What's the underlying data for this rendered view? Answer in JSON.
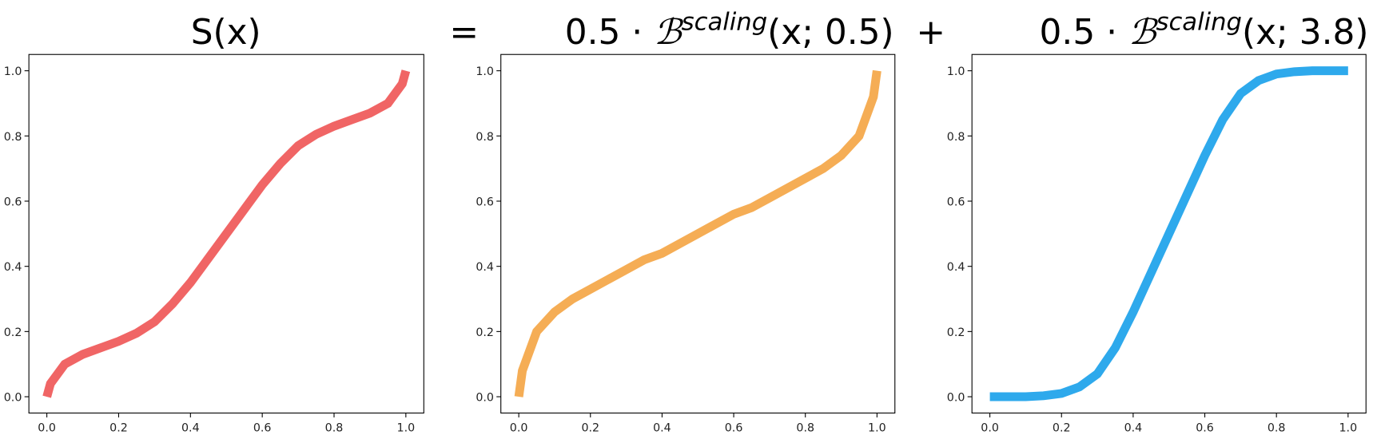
{
  "chart_data": [
    {
      "type": "line",
      "title": "S(x)",
      "color": "#f06565",
      "x": [
        0,
        0.01,
        0.05,
        0.1,
        0.15,
        0.2,
        0.25,
        0.3,
        0.35,
        0.4,
        0.45,
        0.5,
        0.55,
        0.6,
        0.65,
        0.7,
        0.75,
        0.8,
        0.85,
        0.9,
        0.95,
        0.99,
        1
      ],
      "values": [
        0,
        0.04,
        0.1,
        0.13,
        0.15,
        0.17,
        0.195,
        0.23,
        0.285,
        0.35,
        0.425,
        0.5,
        0.575,
        0.65,
        0.715,
        0.77,
        0.805,
        0.83,
        0.85,
        0.87,
        0.9,
        0.96,
        1
      ],
      "xlim": [
        -0.05,
        1.05
      ],
      "ylim": [
        -0.05,
        1.05
      ],
      "xticks": [
        {
          "value": 0,
          "label": "0.0"
        },
        {
          "value": 0.2,
          "label": "0.2"
        },
        {
          "value": 0.4,
          "label": "0.4"
        },
        {
          "value": 0.6,
          "label": "0.6"
        },
        {
          "value": 0.8,
          "label": "0.8"
        },
        {
          "value": 1,
          "label": "1.0"
        }
      ],
      "yticks": [
        {
          "value": 0,
          "label": "0.0"
        },
        {
          "value": 0.2,
          "label": "0.2"
        },
        {
          "value": 0.4,
          "label": "0.4"
        },
        {
          "value": 0.6,
          "label": "0.6"
        },
        {
          "value": 0.8,
          "label": "0.8"
        },
        {
          "value": 1,
          "label": "1.0"
        }
      ]
    },
    {
      "type": "line",
      "title": {
        "coefficient": "0.5 ·",
        "symbol": "ℬ",
        "superscript": "scaling",
        "argument": "(x; 0.5)"
      },
      "color": "#f5ad55",
      "x": [
        0,
        0.01,
        0.05,
        0.1,
        0.15,
        0.2,
        0.25,
        0.3,
        0.35,
        0.4,
        0.45,
        0.5,
        0.55,
        0.6,
        0.65,
        0.7,
        0.75,
        0.8,
        0.85,
        0.9,
        0.95,
        0.99,
        1
      ],
      "values": [
        0,
        0.08,
        0.2,
        0.26,
        0.3,
        0.33,
        0.36,
        0.39,
        0.42,
        0.44,
        0.47,
        0.5,
        0.53,
        0.56,
        0.58,
        0.61,
        0.64,
        0.67,
        0.7,
        0.74,
        0.8,
        0.92,
        1
      ],
      "xlim": [
        -0.05,
        1.05
      ],
      "ylim": [
        -0.05,
        1.05
      ],
      "xticks": [
        {
          "value": 0,
          "label": "0.0"
        },
        {
          "value": 0.2,
          "label": "0.2"
        },
        {
          "value": 0.4,
          "label": "0.4"
        },
        {
          "value": 0.6,
          "label": "0.6"
        },
        {
          "value": 0.8,
          "label": "0.8"
        },
        {
          "value": 1,
          "label": "1.0"
        }
      ],
      "yticks": [
        {
          "value": 0,
          "label": "0.0"
        },
        {
          "value": 0.2,
          "label": "0.2"
        },
        {
          "value": 0.4,
          "label": "0.4"
        },
        {
          "value": 0.6,
          "label": "0.6"
        },
        {
          "value": 0.8,
          "label": "0.8"
        },
        {
          "value": 1,
          "label": "1.0"
        }
      ]
    },
    {
      "type": "line",
      "title": {
        "coefficient": "0.5 ·",
        "symbol": "ℬ",
        "superscript": "scaling",
        "argument": "(x; 3.8)"
      },
      "color": "#2ea9ec",
      "x": [
        0,
        0.01,
        0.05,
        0.1,
        0.15,
        0.2,
        0.25,
        0.3,
        0.35,
        0.4,
        0.45,
        0.5,
        0.55,
        0.6,
        0.65,
        0.7,
        0.75,
        0.8,
        0.85,
        0.9,
        0.95,
        0.99,
        1
      ],
      "values": [
        0,
        0,
        0,
        0,
        0.003,
        0.01,
        0.03,
        0.07,
        0.15,
        0.26,
        0.38,
        0.5,
        0.62,
        0.74,
        0.85,
        0.93,
        0.97,
        0.99,
        0.997,
        1,
        1,
        1,
        1
      ],
      "xlim": [
        -0.05,
        1.05
      ],
      "ylim": [
        -0.05,
        1.05
      ],
      "xticks": [
        {
          "value": 0,
          "label": "0.0"
        },
        {
          "value": 0.2,
          "label": "0.2"
        },
        {
          "value": 0.4,
          "label": "0.4"
        },
        {
          "value": 0.6,
          "label": "0.6"
        },
        {
          "value": 0.8,
          "label": "0.8"
        },
        {
          "value": 1,
          "label": "1.0"
        }
      ],
      "yticks": [
        {
          "value": 0,
          "label": "0.0"
        },
        {
          "value": 0.2,
          "label": "0.2"
        },
        {
          "value": 0.4,
          "label": "0.4"
        },
        {
          "value": 0.6,
          "label": "0.6"
        },
        {
          "value": 0.8,
          "label": "0.8"
        },
        {
          "value": 1,
          "label": "1.0"
        }
      ]
    }
  ],
  "operators": [
    "=",
    "+"
  ]
}
